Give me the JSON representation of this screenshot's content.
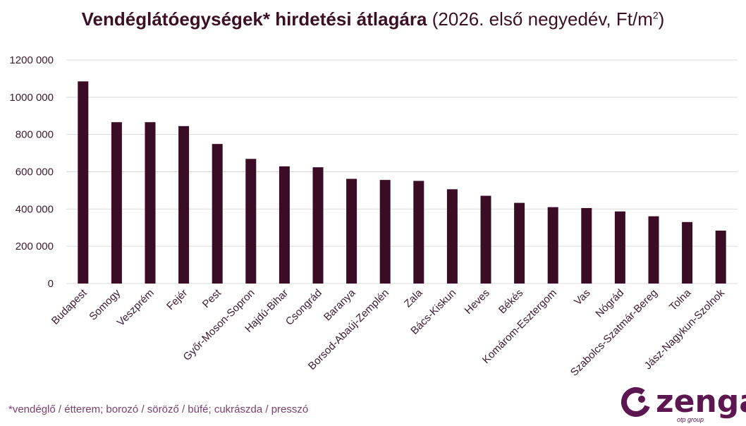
{
  "title": {
    "main": "Vendéglátóegységek* hirdetési átlagára",
    "sub": " (2026. első negyedév, Ft/m",
    "sup": "2",
    "close": ")"
  },
  "footnote": "*vendéglő / étterem; borozó / söröző / büfé; cukrászda / presszó",
  "logo": {
    "word": "zenga",
    "sub": "otp group"
  },
  "colors": {
    "bar": "#3a0c26",
    "grid": "#d9d9d9",
    "title": "#3b1026",
    "logo": "#5c1750",
    "footnote": "#7a3f6e"
  },
  "chart_data": {
    "type": "bar",
    "categories": [
      "Budapest",
      "Somogy",
      "Veszprém",
      "Fejér",
      "Pest",
      "Győr-Moson-Sopron",
      "Hajdú-Bihar",
      "Csongrád",
      "Baranya",
      "Borsod-Abaúj-Zemplén",
      "Zala",
      "Bács-Kiskun",
      "Heves",
      "Békés",
      "Komárom-Esztergom",
      "Vas",
      "Nógrád",
      "Szabolcs-Szatmár-Bereg",
      "Tolna",
      "Jász-Nagykun-Szolnok"
    ],
    "values": [
      1085000,
      866000,
      866000,
      845000,
      749000,
      669000,
      629000,
      624000,
      562000,
      556000,
      551000,
      506000,
      471000,
      433000,
      410000,
      405000,
      387000,
      361000,
      330000,
      284000
    ],
    "yticks": [
      "0",
      "200 000",
      "400 000",
      "600 000",
      "800 000",
      "1000 000",
      "1200 000"
    ],
    "ylim": [
      0,
      1200000
    ],
    "grid": true
  }
}
